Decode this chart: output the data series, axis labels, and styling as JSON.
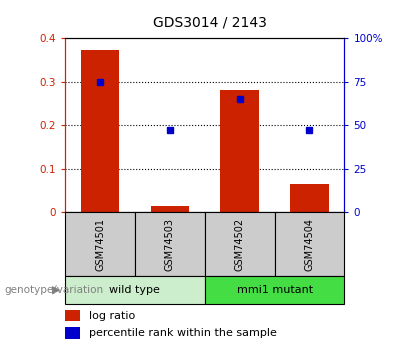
{
  "title": "GDS3014 / 2143",
  "samples": [
    "GSM74501",
    "GSM74503",
    "GSM74502",
    "GSM74504"
  ],
  "log_ratio": [
    0.372,
    0.015,
    0.28,
    0.065
  ],
  "percentile_rank_pct": [
    75,
    47,
    65,
    47
  ],
  "ylim_left": [
    0,
    0.4
  ],
  "ylim_right": [
    0,
    100
  ],
  "yticks_left": [
    0,
    0.1,
    0.2,
    0.3,
    0.4
  ],
  "ytick_labels_left": [
    "0",
    "0.1",
    "0.2",
    "0.3",
    "0.4"
  ],
  "yticks_right": [
    0,
    25,
    50,
    75,
    100
  ],
  "ytick_labels_right": [
    "0",
    "25",
    "50",
    "75",
    "100%"
  ],
  "bar_color": "#cc2200",
  "point_color": "#0000cc",
  "groups": [
    {
      "label": "wild type",
      "indices": [
        0,
        1
      ],
      "color": "#cceecc"
    },
    {
      "label": "mmi1 mutant",
      "indices": [
        2,
        3
      ],
      "color": "#44dd44"
    }
  ],
  "legend_bar_label": "log ratio",
  "legend_point_label": "percentile rank within the sample",
  "genotype_label": "genotype/variation",
  "label_bg_color": "#cccccc",
  "plot_bg_color": "#ffffff",
  "left_axis_color": "#cc2200",
  "right_axis_color": "#0000cc"
}
